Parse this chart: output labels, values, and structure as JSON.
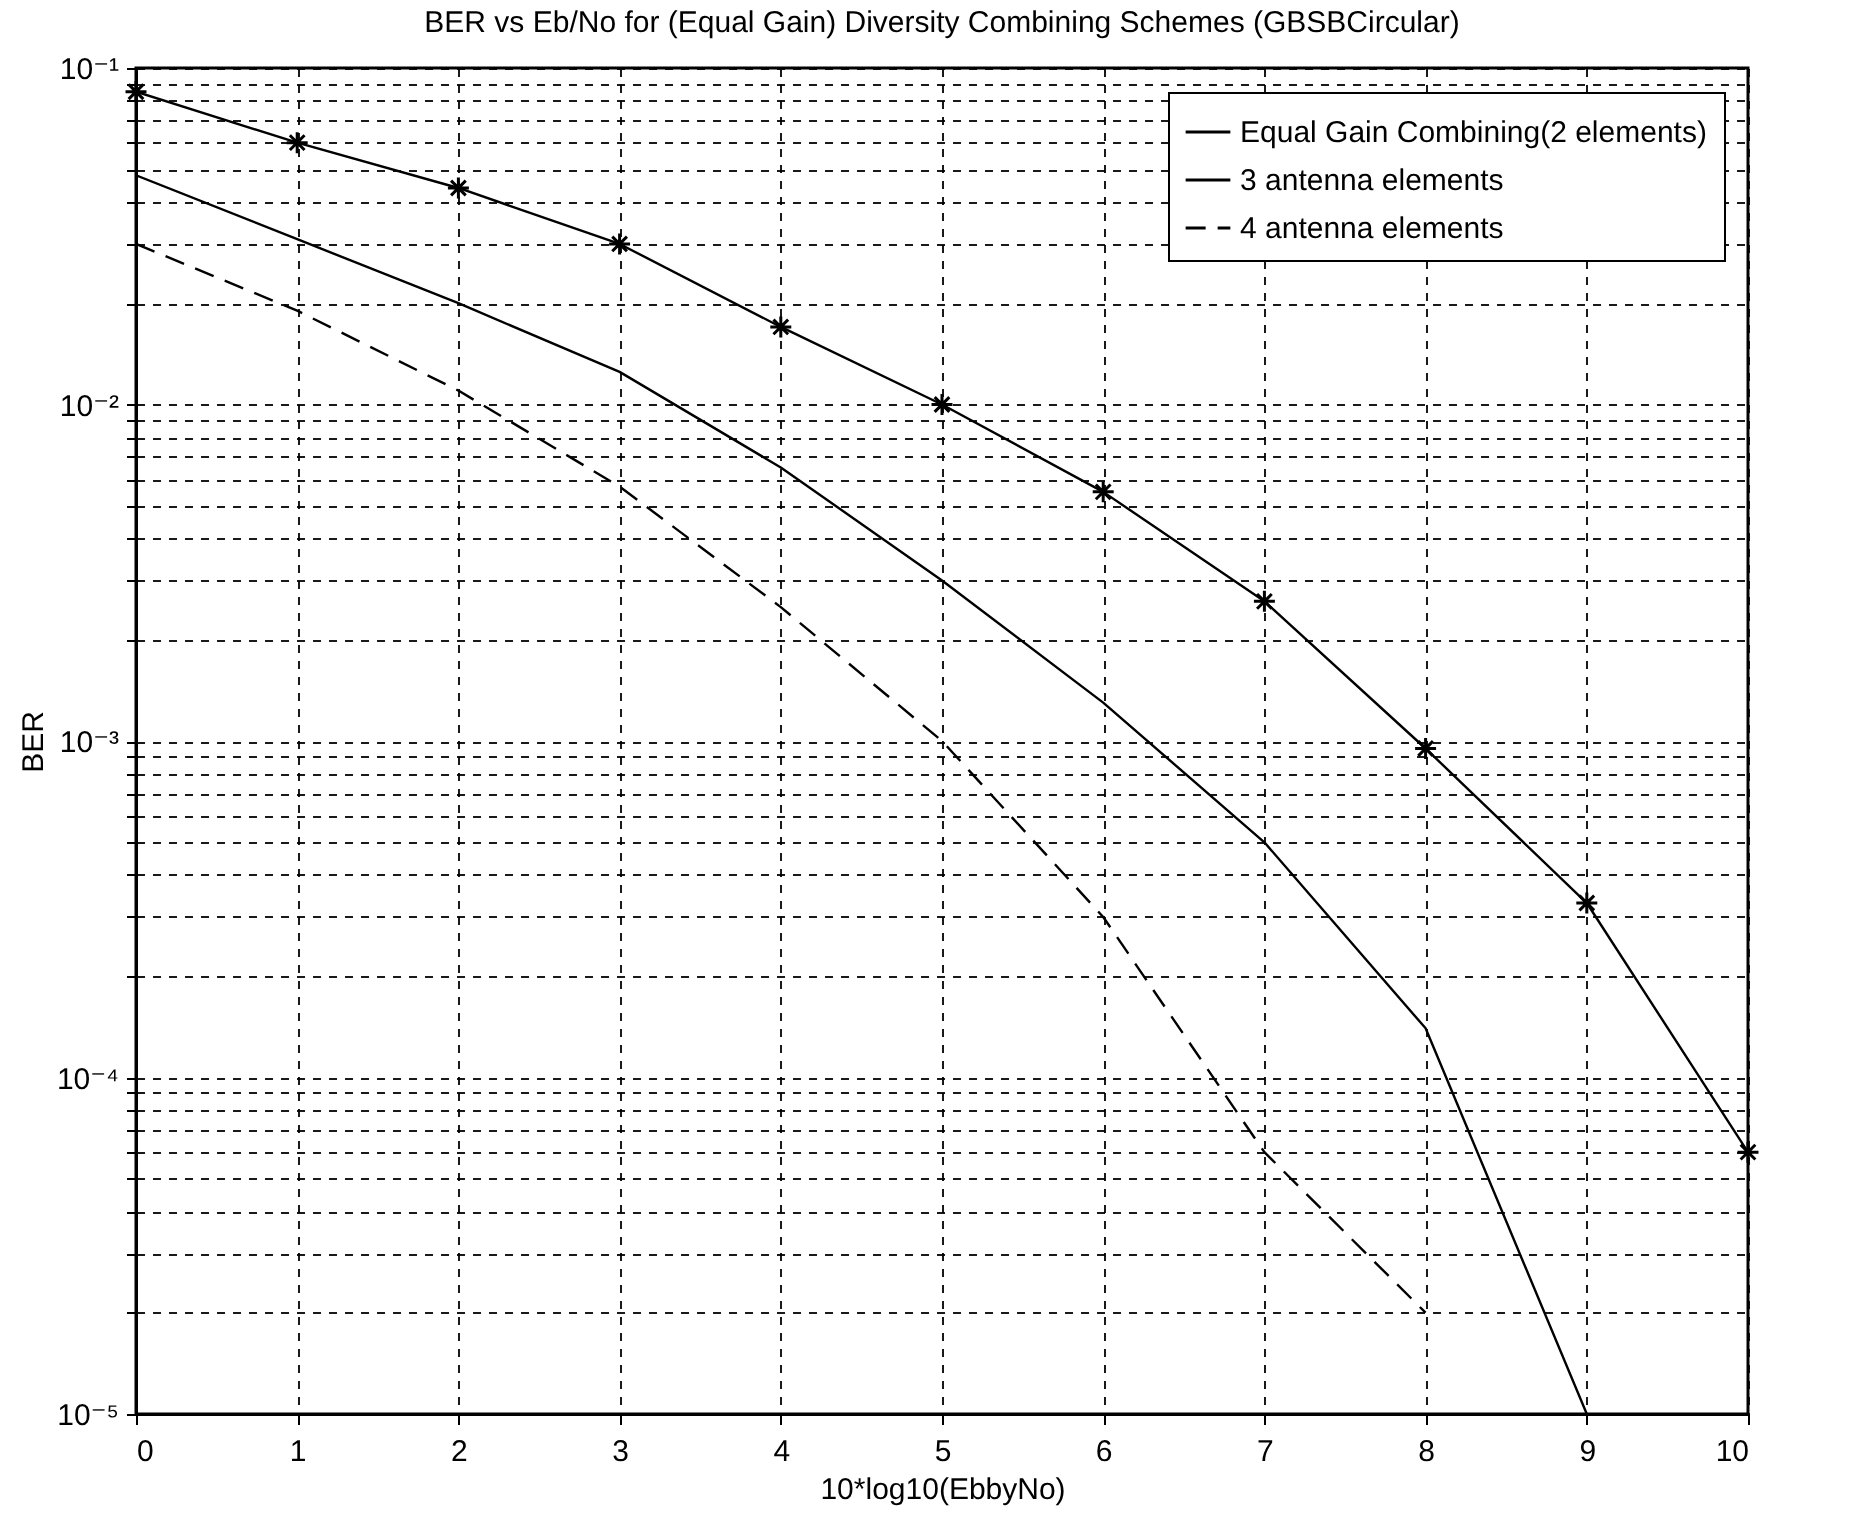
{
  "chart_data": {
    "type": "line",
    "title": "BER vs Eb/No for (Equal Gain) Diversity Combining Schemes (GBSBCircular)",
    "xlabel": "10*log10(EbbyNo)",
    "ylabel": "BER",
    "log": "y",
    "grid": true,
    "legend": "top right",
    "xlim": [
      0,
      10
    ],
    "xticks": [
      0,
      1,
      2,
      3,
      4,
      5,
      6,
      7,
      8,
      9,
      10
    ],
    "ylim": [
      1e-05,
      0.1
    ],
    "yticks": [
      {
        "value": 1e-05,
        "label": "10⁻⁵"
      },
      {
        "value": 2e-05,
        "label": null
      },
      {
        "value": 3e-05,
        "label": null
      },
      {
        "value": 4e-05,
        "label": null
      },
      {
        "value": 5e-05,
        "label": null
      },
      {
        "value": 6e-05,
        "label": null
      },
      {
        "value": 7e-05,
        "label": null
      },
      {
        "value": 8e-05,
        "label": null
      },
      {
        "value": 9e-05,
        "label": null
      },
      {
        "value": 0.0001,
        "label": "10⁻⁴"
      },
      {
        "value": 0.0002,
        "label": null
      },
      {
        "value": 0.0003,
        "label": null
      },
      {
        "value": 0.0004,
        "label": null
      },
      {
        "value": 0.0005,
        "label": null
      },
      {
        "value": 0.0006,
        "label": null
      },
      {
        "value": 0.0007,
        "label": null
      },
      {
        "value": 0.0008,
        "label": null
      },
      {
        "value": 0.0009,
        "label": null
      },
      {
        "value": 0.001,
        "label": "10⁻³"
      },
      {
        "value": 0.002,
        "label": null
      },
      {
        "value": 0.003,
        "label": null
      },
      {
        "value": 0.004,
        "label": null
      },
      {
        "value": 0.005,
        "label": null
      },
      {
        "value": 0.006,
        "label": null
      },
      {
        "value": 0.007,
        "label": null
      },
      {
        "value": 0.008,
        "label": null
      },
      {
        "value": 0.009,
        "label": null
      },
      {
        "value": 0.01,
        "label": "10⁻²"
      },
      {
        "value": 0.02,
        "label": null
      },
      {
        "value": 0.03,
        "label": null
      },
      {
        "value": 0.04,
        "label": null
      },
      {
        "value": 0.05,
        "label": null
      },
      {
        "value": 0.06,
        "label": null
      },
      {
        "value": 0.07,
        "label": null
      },
      {
        "value": 0.08,
        "label": null
      },
      {
        "value": 0.09,
        "label": null
      },
      {
        "value": 0.1,
        "label": "10⁻¹"
      }
    ],
    "series": [
      {
        "name": "Equal Gain Combining(2 elements)",
        "color": "#000000",
        "marker": "cross",
        "x": [
          0,
          1,
          2,
          3,
          4,
          5,
          6,
          7,
          8,
          9,
          10
        ],
        "values": [
          0.085,
          0.06,
          0.044,
          0.03,
          0.017,
          0.01,
          0.0055,
          0.0026,
          0.00095,
          0.00033,
          6e-05
        ]
      },
      {
        "name": "3 antenna elements",
        "color": "#000000",
        "x": [
          0,
          1,
          2,
          3,
          4,
          5,
          6,
          7,
          8,
          9
        ],
        "values": [
          0.048,
          0.031,
          0.02,
          0.0125,
          0.0065,
          0.003,
          0.0013,
          0.0005,
          0.00014,
          1e-05
        ]
      },
      {
        "name": "4 antenna elements",
        "color": "#000000",
        "line_style": "dashed",
        "x": [
          0,
          1,
          2,
          3,
          4,
          5,
          6,
          7,
          8
        ],
        "values": [
          0.03,
          0.019,
          0.011,
          0.0057,
          0.0025,
          0.001,
          0.0003,
          6e-05,
          2e-05
        ]
      }
    ]
  }
}
